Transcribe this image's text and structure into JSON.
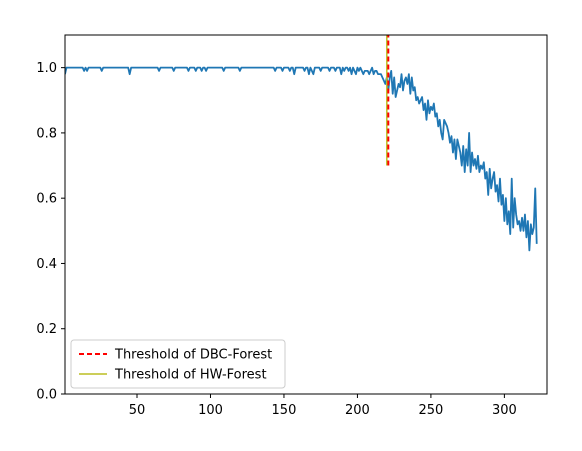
{
  "chart_data": {
    "type": "line",
    "title": "",
    "xlabel": "",
    "ylabel": "",
    "xlim": [
      1,
      329
    ],
    "ylim": [
      0.0,
      1.1
    ],
    "xticks": [
      50,
      100,
      150,
      200,
      250,
      300
    ],
    "xtick_labels": [
      "50",
      "100",
      "150",
      "200",
      "250",
      "300"
    ],
    "yticks": [
      0.0,
      0.2,
      0.4,
      0.6,
      0.8,
      1.0
    ],
    "ytick_labels": [
      "0.0",
      "0.2",
      "0.4",
      "0.6",
      "0.8",
      "1.0"
    ],
    "grid": false,
    "legend_position": "lower-left",
    "series": [
      {
        "color": "#1f77b4",
        "x_start": 1,
        "x_step": 1,
        "y": [
          0.98,
          1.0,
          1.0,
          1.0,
          1.0,
          1.0,
          1.0,
          1.0,
          1.0,
          1.0,
          1.0,
          1.0,
          1.0,
          0.99,
          1.0,
          0.99,
          1.0,
          1.0,
          1.0,
          1.0,
          1.0,
          1.0,
          1.0,
          1.0,
          1.0,
          0.99,
          1.0,
          1.0,
          1.0,
          1.0,
          1.0,
          1.0,
          1.0,
          1.0,
          1.0,
          1.0,
          1.0,
          1.0,
          1.0,
          1.0,
          1.0,
          1.0,
          1.0,
          1.0,
          0.98,
          1.0,
          1.0,
          1.0,
          1.0,
          1.0,
          1.0,
          1.0,
          1.0,
          1.0,
          1.0,
          1.0,
          1.0,
          1.0,
          1.0,
          1.0,
          1.0,
          1.0,
          1.0,
          1.0,
          0.99,
          1.0,
          1.0,
          1.0,
          1.0,
          1.0,
          1.0,
          1.0,
          1.0,
          1.0,
          0.99,
          1.0,
          1.0,
          1.0,
          1.0,
          1.0,
          1.0,
          1.0,
          1.0,
          1.0,
          0.99,
          1.0,
          1.0,
          1.0,
          1.0,
          0.99,
          1.0,
          1.0,
          1.0,
          0.99,
          1.0,
          1.0,
          0.99,
          1.0,
          1.0,
          1.0,
          1.0,
          1.0,
          1.0,
          1.0,
          1.0,
          1.0,
          1.0,
          1.0,
          0.99,
          1.0,
          1.0,
          1.0,
          1.0,
          1.0,
          1.0,
          1.0,
          1.0,
          1.0,
          1.0,
          0.99,
          1.0,
          1.0,
          1.0,
          1.0,
          1.0,
          1.0,
          1.0,
          1.0,
          1.0,
          1.0,
          1.0,
          1.0,
          1.0,
          1.0,
          1.0,
          1.0,
          1.0,
          1.0,
          1.0,
          1.0,
          1.0,
          1.0,
          1.0,
          0.99,
          1.0,
          1.0,
          1.0,
          1.0,
          0.99,
          1.0,
          1.0,
          1.0,
          1.0,
          0.99,
          1.0,
          1.0,
          0.98,
          1.0,
          1.0,
          1.0,
          1.0,
          1.0,
          1.0,
          0.99,
          1.0,
          1.0,
          0.98,
          1.0,
          0.99,
          0.98,
          1.0,
          1.0,
          1.0,
          1.0,
          0.99,
          1.0,
          1.0,
          1.0,
          1.0,
          1.0,
          0.99,
          1.0,
          1.0,
          1.0,
          0.99,
          1.0,
          1.0,
          1.0,
          0.98,
          1.0,
          0.99,
          1.0,
          1.0,
          0.99,
          1.0,
          0.98,
          1.0,
          0.99,
          0.98,
          1.0,
          0.99,
          1.0,
          0.99,
          0.98,
          0.99,
          0.99,
          0.99,
          0.98,
          0.99,
          1.0,
          0.98,
          0.99,
          0.99,
          0.98,
          0.98,
          0.98,
          0.97,
          0.96,
          0.95,
          0.97,
          0.93,
          0.97,
          0.99,
          0.92,
          0.97,
          0.91,
          0.93,
          0.95,
          0.94,
          0.98,
          0.93,
          0.96,
          0.97,
          0.95,
          0.98,
          0.92,
          0.97,
          0.93,
          0.94,
          0.9,
          0.91,
          0.89,
          0.9,
          0.91,
          0.87,
          0.89,
          0.84,
          0.9,
          0.86,
          0.88,
          0.87,
          0.89,
          0.85,
          0.86,
          0.82,
          0.84,
          0.8,
          0.78,
          0.84,
          0.83,
          0.82,
          0.8,
          0.77,
          0.79,
          0.74,
          0.78,
          0.72,
          0.78,
          0.76,
          0.74,
          0.7,
          0.76,
          0.68,
          0.75,
          0.7,
          0.8,
          0.68,
          0.74,
          0.7,
          0.72,
          0.69,
          0.73,
          0.68,
          0.7,
          0.69,
          0.71,
          0.66,
          0.68,
          0.61,
          0.69,
          0.63,
          0.66,
          0.68,
          0.62,
          0.64,
          0.59,
          0.66,
          0.58,
          0.61,
          0.53,
          0.6,
          0.52,
          0.56,
          0.49,
          0.66,
          0.51,
          0.6,
          0.55,
          0.52,
          0.53,
          0.5,
          0.54,
          0.5,
          0.55,
          0.48,
          0.53,
          0.44,
          0.52,
          0.49,
          0.51,
          0.63,
          0.46
        ]
      }
    ],
    "thresholds": [
      {
        "name": "Threshold of DBC-Forest",
        "x": 221,
        "y_range": [
          0.7,
          1.1
        ],
        "color": "#ff0000",
        "style": "dashed"
      },
      {
        "name": "Threshold of HW-Forest",
        "x": 220,
        "y_range": [
          0.7,
          1.1
        ],
        "color": "#bcbd22",
        "style": "solid"
      }
    ]
  }
}
